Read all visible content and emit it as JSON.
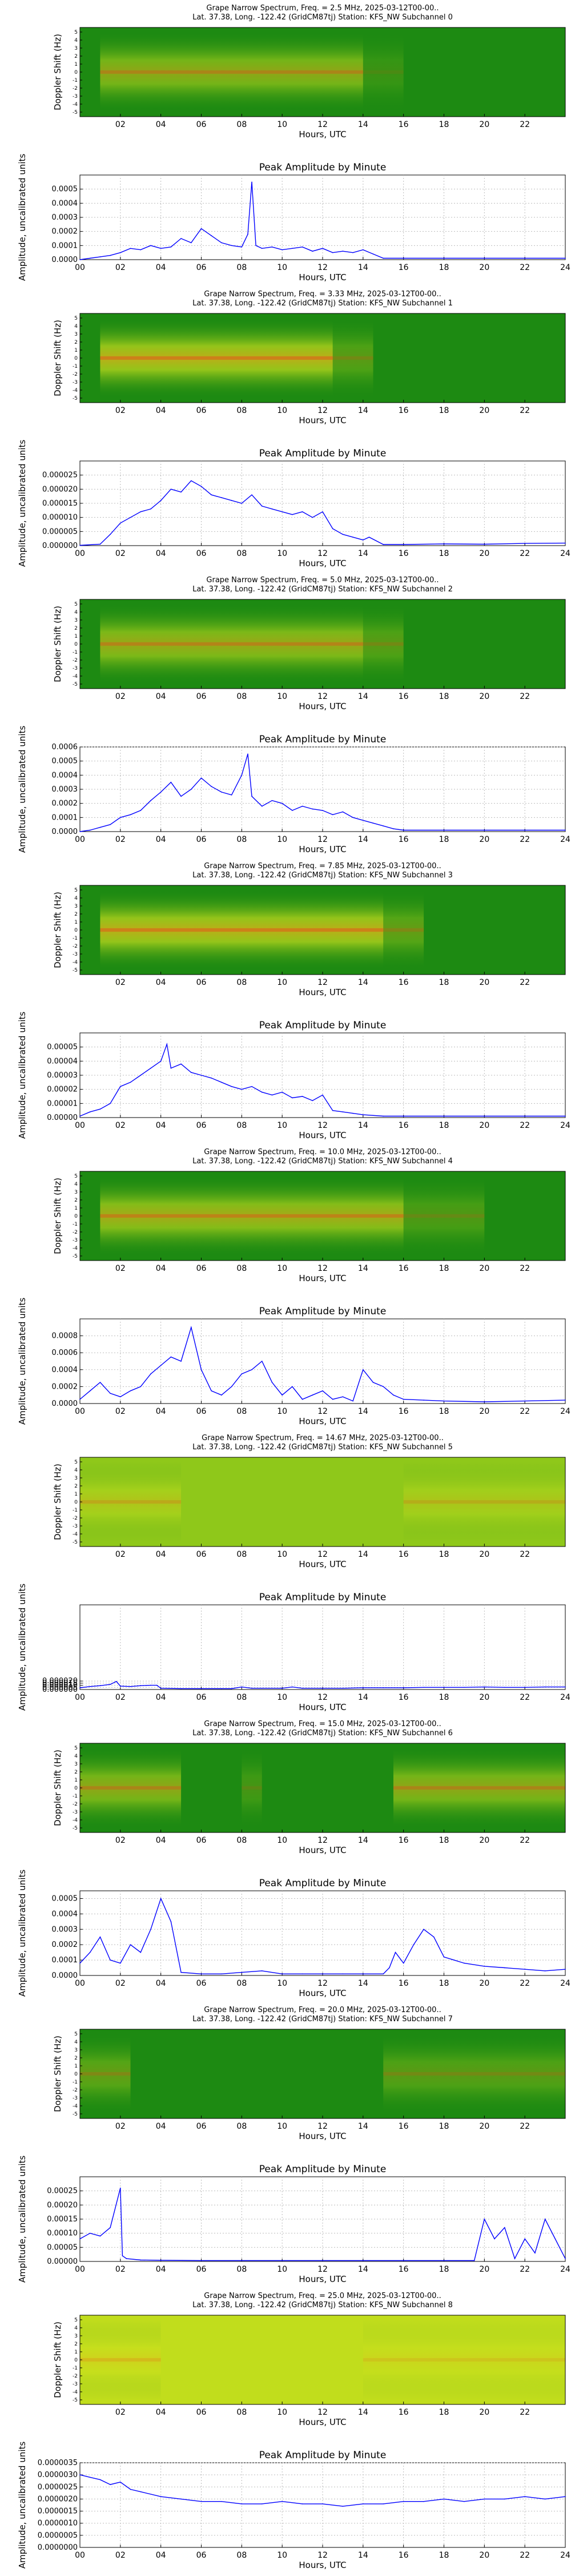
{
  "colors": {
    "spec_bg": "#1d8a12",
    "spec_bg_alt": "#8fc81a",
    "spec_mid": "#d6e51e",
    "spec_hot": "#f0b81a",
    "spec_core": "#e8401a",
    "line": "#0000ff",
    "grid": "#bbbbbb"
  },
  "hours_label": "Hours, UTC",
  "spectrum_ylabel": "Doppler Shift (Hz)",
  "amp_title": "Peak Amplitude by Minute",
  "amp_ylabel": "Amplitude, uncalibrated units",
  "spectrum_xticks": [
    "02",
    "04",
    "06",
    "08",
    "10",
    "12",
    "14",
    "16",
    "18",
    "20",
    "22"
  ],
  "spectrum_yticks": [
    "5",
    "4",
    "3",
    "2",
    "1",
    "0",
    "-1",
    "-2",
    "-3",
    "-4",
    "-5"
  ],
  "amp_xticks": [
    "00",
    "02",
    "04",
    "06",
    "08",
    "10",
    "12",
    "14",
    "16",
    "18",
    "20",
    "22",
    "24"
  ],
  "channels": [
    {
      "title_line1": "Grape Narrow Spectrum, Freq. = 2.5 MHz, 2025-03-12T00-00..",
      "title_line2": "Lat.  37.38, Long. -122.42 (GridCM87tj) Station: KFS_NW Subchannel 0",
      "activity": [
        [
          1,
          14,
          0.55
        ],
        [
          14,
          16,
          0.15
        ]
      ],
      "chart_data": {
        "type": "line",
        "title": "Peak Amplitude by Minute",
        "xlabel": "Hours, UTC",
        "ylabel": "Amplitude, uncalibrated units",
        "xlim": [
          0,
          24
        ],
        "ylim": [
          0,
          0.0006
        ],
        "yticks": [
          "0.0000",
          "0.0001",
          "0.0002",
          "0.0003",
          "0.0004",
          "0.0005"
        ],
        "x": [
          0,
          0.5,
          1,
          1.5,
          2,
          2.5,
          3,
          3.5,
          4,
          4.5,
          5,
          5.5,
          6,
          6.5,
          7,
          7.5,
          8,
          8.3,
          8.5,
          8.7,
          9,
          9.5,
          10,
          10.5,
          11,
          11.5,
          12,
          12.5,
          13,
          13.5,
          14,
          14.5,
          15,
          16,
          18,
          20,
          22,
          24
        ],
        "y": [
          0,
          1e-05,
          2e-05,
          3e-05,
          5e-05,
          8e-05,
          7e-05,
          0.0001,
          8e-05,
          9e-05,
          0.00015,
          0.00012,
          0.00022,
          0.00017,
          0.00012,
          0.0001,
          9e-05,
          0.00018,
          0.00055,
          0.0001,
          8e-05,
          9e-05,
          7e-05,
          8e-05,
          9e-05,
          6e-05,
          8e-05,
          5e-05,
          6e-05,
          5e-05,
          7e-05,
          4e-05,
          1e-05,
          1e-05,
          1e-05,
          1e-05,
          1e-05,
          1e-05
        ]
      }
    },
    {
      "title_line1": "Grape Narrow Spectrum, Freq. = 3.33 MHz, 2025-03-12T00-00..",
      "title_line2": "Lat.  37.38, Long. -122.42 (GridCM87tj) Station: KFS_NW Subchannel 1",
      "activity": [
        [
          1,
          12.5,
          0.75
        ],
        [
          12.5,
          14.5,
          0.3
        ]
      ],
      "chart_data": {
        "type": "line",
        "title": "Peak Amplitude by Minute",
        "xlabel": "Hours, UTC",
        "ylabel": "Amplitude, uncalibrated units",
        "xlim": [
          0,
          24
        ],
        "ylim": [
          0,
          3e-05
        ],
        "yticks": [
          "0.000000",
          "0.000005",
          "0.000010",
          "0.000015",
          "0.000020",
          "0.000025"
        ],
        "x": [
          0,
          1,
          1.5,
          2,
          2.5,
          3,
          3.5,
          4,
          4.5,
          5,
          5.5,
          6,
          6.5,
          7,
          7.5,
          8,
          8.5,
          9,
          9.5,
          10,
          10.5,
          11,
          11.5,
          12,
          12.5,
          13,
          13.5,
          14,
          14.3,
          15,
          16,
          18,
          20,
          22,
          24
        ],
        "y": [
          1e-07,
          5e-07,
          4e-06,
          8e-06,
          1e-05,
          1.2e-05,
          1.3e-05,
          1.6e-05,
          2e-05,
          1.9e-05,
          2.3e-05,
          2.1e-05,
          1.8e-05,
          1.7e-05,
          1.6e-05,
          1.5e-05,
          1.8e-05,
          1.4e-05,
          1.3e-05,
          1.2e-05,
          1.1e-05,
          1.2e-05,
          1e-05,
          1.2e-05,
          6e-06,
          4e-06,
          3e-06,
          2e-06,
          3e-06,
          4e-07,
          4e-07,
          6e-07,
          5e-07,
          8e-07,
          9e-07
        ]
      }
    },
    {
      "title_line1": "Grape Narrow Spectrum, Freq. = 5.0 MHz, 2025-03-12T00-00..",
      "title_line2": "Lat.  37.38, Long. -122.42 (GridCM87tj) Station: KFS_NW Subchannel 2",
      "activity": [
        [
          1,
          14,
          0.6
        ],
        [
          14,
          16,
          0.3
        ]
      ],
      "chart_data": {
        "type": "line",
        "title": "Peak Amplitude by Minute",
        "xlabel": "Hours, UTC",
        "ylabel": "Amplitude, uncalibrated units",
        "xlim": [
          0,
          24
        ],
        "ylim": [
          0,
          0.0006
        ],
        "yticks": [
          "0.0000",
          "0.0001",
          "0.0002",
          "0.0003",
          "0.0004",
          "0.0005",
          "0.0006"
        ],
        "x": [
          0,
          0.5,
          1,
          1.5,
          2,
          2.5,
          3,
          3.5,
          4,
          4.5,
          5,
          5.5,
          6,
          6.5,
          7,
          7.5,
          8,
          8.3,
          8.5,
          9,
          9.5,
          10,
          10.5,
          11,
          11.5,
          12,
          12.5,
          13,
          13.5,
          14,
          14.5,
          15,
          15.5,
          16,
          18,
          20,
          22,
          24
        ],
        "y": [
          0,
          1e-05,
          3e-05,
          5e-05,
          0.0001,
          0.00012,
          0.00015,
          0.00022,
          0.00028,
          0.00035,
          0.00025,
          0.0003,
          0.00038,
          0.00032,
          0.00028,
          0.00026,
          0.0004,
          0.00055,
          0.00025,
          0.00018,
          0.00022,
          0.0002,
          0.00015,
          0.00018,
          0.00016,
          0.00015,
          0.00012,
          0.00014,
          0.0001,
          8e-05,
          6e-05,
          4e-05,
          2e-05,
          1e-05,
          1e-05,
          1e-05,
          1e-05,
          1e-05
        ]
      }
    },
    {
      "title_line1": "Grape Narrow Spectrum, Freq. = 7.85 MHz, 2025-03-12T00-00..",
      "title_line2": "Lat.  37.38, Long. -122.42 (GridCM87tj) Station: KFS_NW Subchannel 3",
      "activity": [
        [
          1,
          15,
          0.75
        ],
        [
          15,
          17,
          0.35
        ]
      ],
      "chart_data": {
        "type": "line",
        "title": "Peak Amplitude by Minute",
        "xlabel": "Hours, UTC",
        "ylabel": "Amplitude, uncalibrated units",
        "xlim": [
          0,
          24
        ],
        "ylim": [
          0,
          6e-05
        ],
        "yticks": [
          "0.00000",
          "0.00001",
          "0.00002",
          "0.00003",
          "0.00004",
          "0.00005"
        ],
        "x": [
          0,
          0.5,
          1,
          1.5,
          2,
          2.5,
          3,
          3.5,
          4,
          4.3,
          4.5,
          5,
          5.5,
          6,
          6.5,
          7,
          7.5,
          8,
          8.5,
          9,
          9.5,
          10,
          10.5,
          11,
          11.5,
          12,
          12.5,
          13,
          13.5,
          14,
          15,
          16,
          18,
          20,
          22,
          24
        ],
        "y": [
          1e-06,
          4e-06,
          6e-06,
          1e-05,
          2.2e-05,
          2.5e-05,
          3e-05,
          3.5e-05,
          4e-05,
          5.2e-05,
          3.5e-05,
          3.8e-05,
          3.2e-05,
          3e-05,
          2.8e-05,
          2.5e-05,
          2.2e-05,
          2e-05,
          2.2e-05,
          1.8e-05,
          1.6e-05,
          1.8e-05,
          1.4e-05,
          1.5e-05,
          1.2e-05,
          1.6e-05,
          5e-06,
          4e-06,
          3e-06,
          2e-06,
          1e-06,
          1e-06,
          1e-06,
          1e-06,
          1e-06,
          1e-06
        ]
      }
    },
    {
      "title_line1": "Grape Narrow Spectrum, Freq. = 10.0 MHz, 2025-03-12T00-00..",
      "title_line2": "Lat.  37.38, Long. -122.42 (GridCM87tj) Station: KFS_NW Subchannel 4",
      "activity": [
        [
          1,
          16,
          0.65
        ],
        [
          16,
          20,
          0.25
        ]
      ],
      "chart_data": {
        "type": "line",
        "title": "Peak Amplitude by Minute",
        "xlabel": "Hours, UTC",
        "ylabel": "Amplitude, uncalibrated units",
        "xlim": [
          0,
          24
        ],
        "ylim": [
          0,
          0.001
        ],
        "yticks": [
          "0.0000",
          "0.0002",
          "0.0004",
          "0.0006",
          "0.0008"
        ],
        "x": [
          0,
          0.5,
          1,
          1.5,
          2,
          2.5,
          3,
          3.5,
          4,
          4.5,
          5,
          5.5,
          6,
          6.5,
          7,
          7.5,
          8,
          8.5,
          9,
          9.5,
          10,
          10.5,
          11,
          11.5,
          12,
          12.5,
          13,
          13.5,
          14,
          14.5,
          15,
          15.5,
          16,
          17,
          18,
          20,
          22,
          24
        ],
        "y": [
          5e-05,
          0.00015,
          0.00025,
          0.00012,
          8e-05,
          0.00015,
          0.0002,
          0.00035,
          0.00045,
          0.00055,
          0.0005,
          0.0009,
          0.0004,
          0.00015,
          0.0001,
          0.0002,
          0.00035,
          0.0004,
          0.0005,
          0.00025,
          0.0001,
          0.0002,
          5e-05,
          0.0001,
          0.00015,
          5e-05,
          8e-05,
          3e-05,
          0.0004,
          0.00025,
          0.0002,
          0.0001,
          5e-05,
          4e-05,
          3e-05,
          2e-05,
          3e-05,
          4e-05
        ]
      }
    },
    {
      "title_line1": "Grape Narrow Spectrum, Freq. = 14.67 MHz, 2025-03-12T00-00..",
      "title_line2": "Lat.  37.38, Long. -122.42 (GridCM87tj) Station: KFS_NW Subchannel 5",
      "background": "alt",
      "activity": [
        [
          0,
          5,
          0.35
        ],
        [
          16,
          24,
          0.3
        ]
      ],
      "chart_data": {
        "type": "line",
        "title": "Peak Amplitude by Minute",
        "xlabel": "Hours, UTC",
        "ylabel": "Amplitude, uncalibrated units",
        "xlim": [
          0,
          24
        ],
        "ylim": [
          0,
          0.0002
        ],
        "yticks": [
          "0.000000",
          "0.000005",
          "0.000010",
          "0.000015",
          "0.000020"
        ],
        "x": [
          0,
          0.5,
          1,
          1.5,
          1.8,
          2,
          2.5,
          3,
          3.5,
          3.8,
          4,
          5,
          6,
          7,
          7.5,
          8,
          8.5,
          9,
          10,
          10.5,
          11,
          12,
          13,
          14,
          15,
          16,
          17,
          18,
          19,
          20,
          21,
          22,
          23,
          24
        ],
        "y": [
          4e-06,
          7e-06,
          9e-06,
          1.2e-05,
          1.9e-05,
          8e-06,
          7e-06,
          9e-06,
          1e-05,
          1e-05,
          3e-06,
          2e-06,
          2e-06,
          2e-06,
          2e-06,
          6e-06,
          3e-06,
          3e-06,
          3e-06,
          6e-06,
          3e-06,
          3e-06,
          3e-06,
          4e-06,
          4e-06,
          4e-06,
          5e-06,
          5e-06,
          5e-06,
          6e-06,
          5e-06,
          5e-06,
          6e-06,
          6e-06
        ]
      }
    },
    {
      "title_line1": "Grape Narrow Spectrum, Freq. = 15.0 MHz, 2025-03-12T00-00..",
      "title_line2": "Lat.  37.38, Long. -122.42 (GridCM87tj) Station: KFS_NW Subchannel 6",
      "activity": [
        [
          0,
          5,
          0.55
        ],
        [
          8,
          9,
          0.2
        ],
        [
          15.5,
          24,
          0.55
        ]
      ],
      "chart_data": {
        "type": "line",
        "title": "Peak Amplitude by Minute",
        "xlabel": "Hours, UTC",
        "ylabel": "Amplitude, uncalibrated units",
        "xlim": [
          0,
          24
        ],
        "ylim": [
          0,
          0.00055
        ],
        "yticks": [
          "0.0000",
          "0.0001",
          "0.0002",
          "0.0003",
          "0.0004",
          "0.0005"
        ],
        "x": [
          0,
          0.5,
          1,
          1.5,
          2,
          2.5,
          3,
          3.5,
          4,
          4.5,
          5,
          6,
          7,
          8,
          9,
          10,
          11,
          12,
          13,
          14,
          15,
          15.3,
          15.6,
          16,
          16.5,
          17,
          17.5,
          18,
          18.5,
          19,
          20,
          21,
          22,
          23,
          24
        ],
        "y": [
          8e-05,
          0.00015,
          0.00025,
          0.0001,
          8e-05,
          0.0002,
          0.00015,
          0.0003,
          0.0005,
          0.00035,
          2e-05,
          1e-05,
          1e-05,
          2e-05,
          3e-05,
          1e-05,
          1e-05,
          1e-05,
          1e-05,
          1e-05,
          1e-05,
          5e-05,
          0.00015,
          8e-05,
          0.0002,
          0.0003,
          0.00025,
          0.00012,
          0.0001,
          8e-05,
          6e-05,
          5e-05,
          4e-05,
          3e-05,
          4e-05
        ]
      }
    },
    {
      "title_line1": "Grape Narrow Spectrum, Freq. = 20.0 MHz, 2025-03-12T00-00..",
      "title_line2": "Lat.  37.38, Long. -122.42 (GridCM87tj) Station: KFS_NW Subchannel 7",
      "activity": [
        [
          0,
          2.5,
          0.35
        ],
        [
          15,
          24,
          0.3
        ]
      ],
      "chart_data": {
        "type": "line",
        "title": "Peak Amplitude by Minute",
        "xlabel": "Hours, UTC",
        "ylabel": "Amplitude, uncalibrated units",
        "xlim": [
          0,
          24
        ],
        "ylim": [
          0,
          0.0003
        ],
        "yticks": [
          "0.00000",
          "0.00005",
          "0.00010",
          "0.00015",
          "0.00020",
          "0.00025"
        ],
        "x": [
          0,
          0.5,
          1,
          1.5,
          2,
          2.1,
          2.3,
          3,
          4,
          6,
          8,
          10,
          12,
          14,
          16,
          18,
          19.5,
          20,
          20.5,
          21,
          21.5,
          22,
          22.5,
          23,
          23.5,
          24
        ],
        "y": [
          8e-05,
          0.0001,
          9e-05,
          0.00012,
          0.00026,
          2e-05,
          1e-05,
          5e-06,
          4e-06,
          3e-06,
          3e-06,
          3e-06,
          3e-06,
          3e-06,
          3e-06,
          3e-06,
          3e-06,
          0.00015,
          8e-05,
          0.00012,
          1e-05,
          8e-05,
          3e-05,
          0.00015,
          8e-05,
          1e-05
        ]
      }
    },
    {
      "title_line1": "Grape Narrow Spectrum, Freq. = 25.0 MHz, 2025-03-12T00-00..",
      "title_line2": "Lat.  37.38, Long. -122.42 (GridCM87tj) Station: KFS_NW Subchannel 8",
      "background": "noise",
      "activity": [
        [
          0,
          4,
          0.3
        ],
        [
          14,
          24,
          0.2
        ]
      ],
      "chart_data": {
        "type": "line",
        "title": "Peak Amplitude by Minute",
        "xlabel": "Hours, UTC",
        "ylabel": "Amplitude, uncalibrated units",
        "xlim": [
          0,
          24
        ],
        "ylim": [
          0,
          3.5e-06
        ],
        "yticks": [
          "0.0000000",
          "0.0000005",
          "0.0000010",
          "0.0000015",
          "0.0000020",
          "0.0000025",
          "0.0000030",
          "0.0000035"
        ],
        "x": [
          0,
          0.5,
          1,
          1.5,
          2,
          2.5,
          3,
          4,
          5,
          6,
          7,
          8,
          9,
          10,
          11,
          12,
          13,
          14,
          15,
          16,
          17,
          18,
          19,
          20,
          21,
          22,
          23,
          24
        ],
        "y": [
          3e-06,
          2.9e-06,
          2.8e-06,
          2.6e-06,
          2.7e-06,
          2.4e-06,
          2.3e-06,
          2.1e-06,
          2e-06,
          1.9e-06,
          1.9e-06,
          1.8e-06,
          1.8e-06,
          1.9e-06,
          1.8e-06,
          1.8e-06,
          1.7e-06,
          1.8e-06,
          1.8e-06,
          1.9e-06,
          1.9e-06,
          2e-06,
          1.9e-06,
          2e-06,
          2e-06,
          2.1e-06,
          2e-06,
          2.1e-06
        ]
      }
    }
  ]
}
